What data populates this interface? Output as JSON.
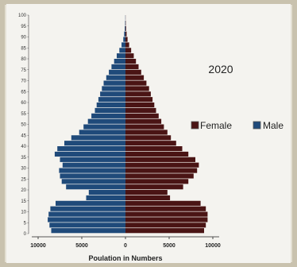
{
  "chart_data": {
    "type": "bar",
    "orientation": "horizontal",
    "title": "2020",
    "xlabel": "Poulation in Numbers",
    "ylabel": "",
    "xlim": [
      -10000,
      10000
    ],
    "x_tick_labels": [
      "10000",
      "5000",
      "0",
      "5000",
      "10000"
    ],
    "age_groups": [
      0,
      2.5,
      5,
      7.5,
      10,
      12.5,
      15,
      17.5,
      20,
      22.5,
      25,
      27.5,
      30,
      32.5,
      35,
      37.5,
      40,
      42.5,
      45,
      47.5,
      50,
      52.5,
      55,
      57.5,
      60,
      62.5,
      65,
      67.5,
      70,
      72.5,
      75,
      77.5,
      80,
      82.5,
      85,
      87.5,
      90,
      92.5,
      95,
      97.5
    ],
    "y_tick_labels": [
      "0",
      "5",
      "10",
      "15",
      "20",
      "25",
      "30",
      "35",
      "40",
      "45",
      "50",
      "55",
      "60",
      "65",
      "70",
      "75",
      "80",
      "85",
      "90",
      "95",
      "100"
    ],
    "legend_position": "right",
    "series": [
      {
        "name": "Male",
        "color": "#1f4a7a",
        "values": [
          8500,
          8700,
          8900,
          8800,
          8600,
          8000,
          4500,
          4200,
          6800,
          7300,
          7500,
          7600,
          7200,
          7500,
          8100,
          7800,
          7000,
          6200,
          5300,
          4800,
          4300,
          3900,
          3500,
          3300,
          3100,
          2900,
          2700,
          2500,
          2200,
          1900,
          1600,
          1300,
          1000,
          700,
          450,
          250,
          150,
          80,
          40,
          20
        ]
      },
      {
        "name": "Female",
        "color": "#4a1414",
        "values": [
          9000,
          9200,
          9400,
          9400,
          9200,
          8600,
          5100,
          4800,
          6600,
          7200,
          7800,
          8200,
          8400,
          8000,
          7200,
          6500,
          5800,
          5200,
          4800,
          4400,
          4100,
          3800,
          3500,
          3300,
          3100,
          2900,
          2700,
          2400,
          2100,
          1800,
          1500,
          1200,
          950,
          650,
          420,
          240,
          130,
          70,
          35,
          15
        ]
      }
    ]
  }
}
